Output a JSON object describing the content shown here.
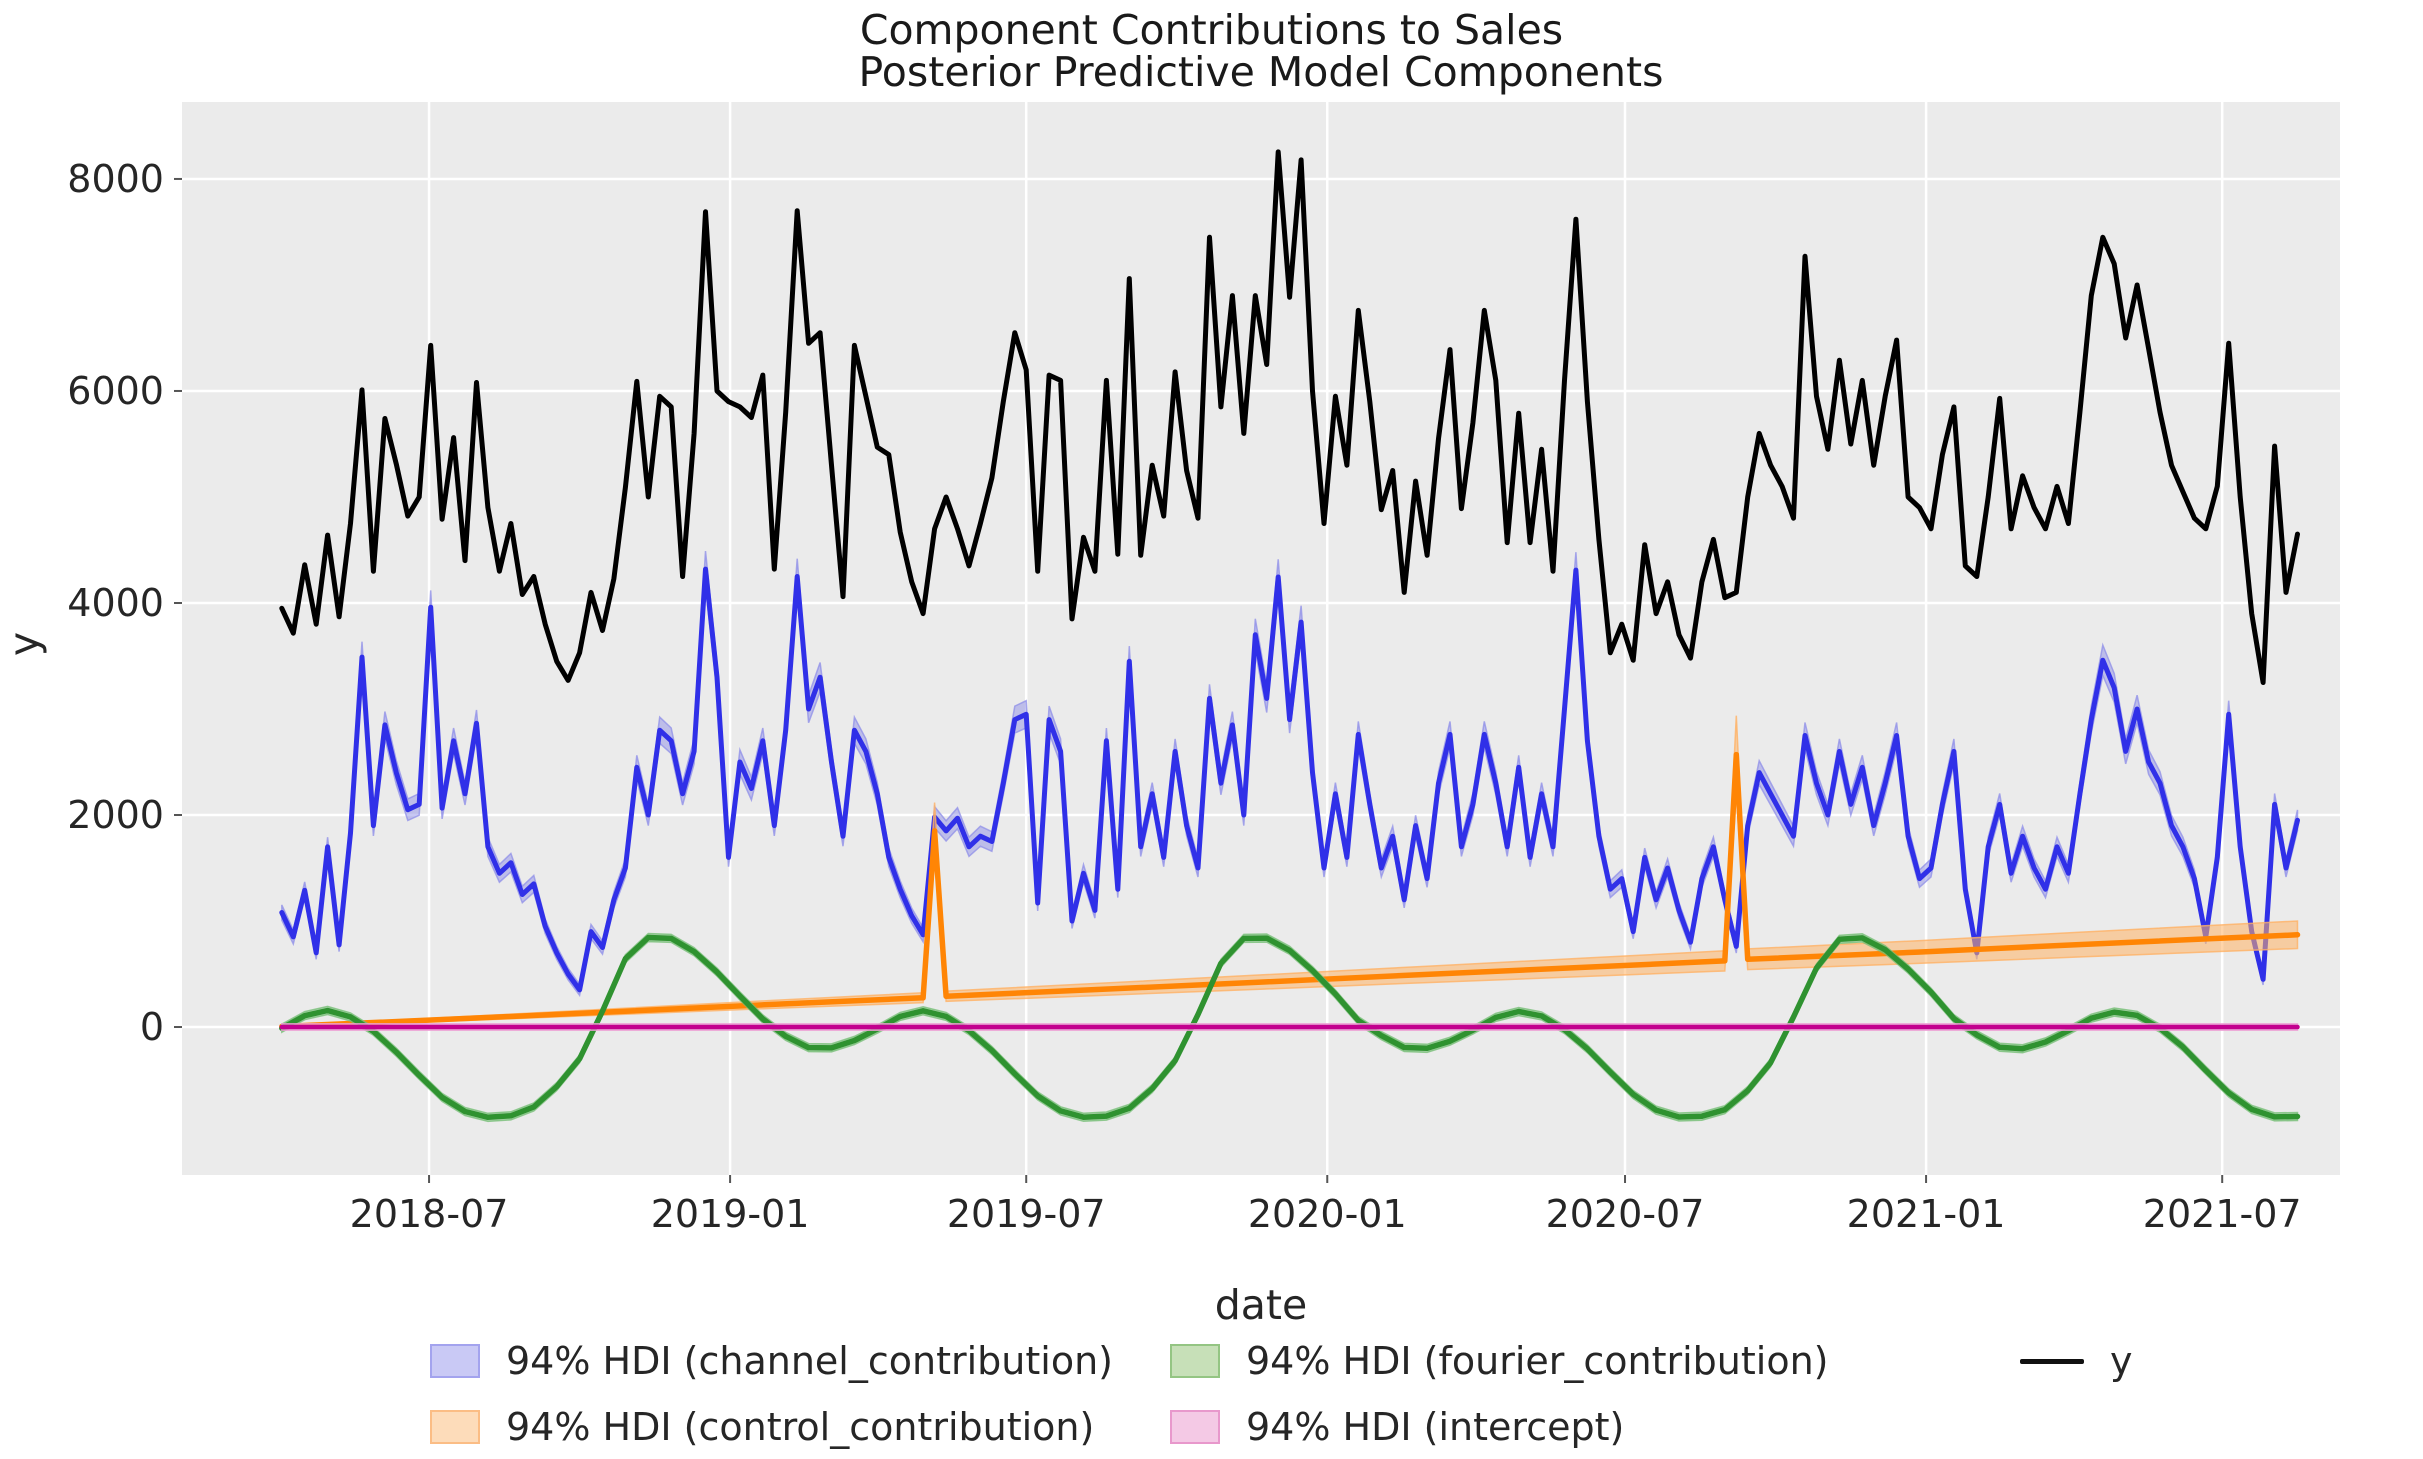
{
  "figure": {
    "title": "Component Contributions to Sales",
    "subtitle": "Posterior Predictive Model Components",
    "xlabel": "date",
    "ylabel": "y"
  },
  "colors": {
    "figure_bg": "#ffffff",
    "plot_bg": "#ebebeb",
    "grid": "#ffffff",
    "tick_text": "#262626",
    "title_text": "#1a1a1a"
  },
  "chart_data": {
    "type": "line",
    "title": "Component Contributions to Sales",
    "subtitle": "Posterior Predictive Model Components",
    "xlabel": "date",
    "ylabel": "y",
    "grid": true,
    "legend_position": "bottom",
    "x_unit": "days since 2018-04-02 (weekly observations)",
    "x_domain": [
      -61,
      1258
    ],
    "y_domain": [
      -1396,
      8726
    ],
    "x_ticks": [
      {
        "day": 90,
        "label": "2018-07"
      },
      {
        "day": 274,
        "label": "2019-01"
      },
      {
        "day": 455,
        "label": "2019-07"
      },
      {
        "day": 639,
        "label": "2020-01"
      },
      {
        "day": 821,
        "label": "2020-07"
      },
      {
        "day": 1005,
        "label": "2021-01"
      },
      {
        "day": 1186,
        "label": "2021-07"
      }
    ],
    "y_ticks": [
      0,
      2000,
      4000,
      6000,
      8000
    ],
    "series": [
      {
        "name": "94% HDI (channel_contribution)",
        "kind": "hdi-band-with-mean-line",
        "color": "#3030e8",
        "band_color": "#8f8fe8",
        "band_alpha": 0.5,
        "band_rule": {
          "base": 40,
          "factor": 0.03
        },
        "line_width": 5,
        "start_day": 0,
        "step_days": 7,
        "values": [
          1080,
          850,
          1290,
          700,
          1700,
          775,
          1830,
          3490,
          1900,
          2850,
          2400,
          2050,
          2100,
          3960,
          2065,
          2700,
          2200,
          2865,
          1700,
          1450,
          1550,
          1250,
          1350,
          950,
          700,
          500,
          350,
          900,
          750,
          1200,
          1500,
          2450,
          2000,
          2800,
          2700,
          2200,
          2600,
          4320,
          3300,
          1600,
          2500,
          2250,
          2700,
          1900,
          2800,
          4250,
          3000,
          3300,
          2500,
          1800,
          2800,
          2600,
          2200,
          1600,
          1300,
          1050,
          870,
          1980,
          1850,
          1970,
          1700,
          1800,
          1750,
          2300,
          2900,
          2950,
          1170,
          2900,
          2600,
          1000,
          1450,
          1100,
          2700,
          1300,
          3450,
          1700,
          2200,
          1600,
          2600,
          1900,
          1500,
          3100,
          2300,
          2850,
          2000,
          3700,
          3100,
          4245,
          2900,
          3820,
          2400,
          1500,
          2200,
          1600,
          2760,
          2100,
          1500,
          1800,
          1200,
          1900,
          1400,
          2300,
          2760,
          1700,
          2100,
          2760,
          2300,
          1700,
          2450,
          1600,
          2200,
          1700,
          3000,
          4310,
          2700,
          1800,
          1300,
          1400,
          900,
          1600,
          1200,
          1500,
          1100,
          800,
          1400,
          1700,
          1200,
          760,
          1900,
          2400,
          2200,
          2000,
          1800,
          2750,
          2300,
          2000,
          2600,
          2100,
          2450,
          1900,
          2300,
          2750,
          1800,
          1400,
          1500,
          2100,
          2600,
          1300,
          700,
          1700,
          2100,
          1450,
          1800,
          1500,
          1300,
          1700,
          1450,
          2200,
          2900,
          3460,
          3200,
          2600,
          3000,
          2500,
          2300,
          1900,
          1700,
          1400,
          850,
          1600,
          2950,
          1700,
          900,
          450,
          2100,
          1500,
          1950
        ]
      },
      {
        "name": "94% HDI (control_contribution)",
        "kind": "hdi-band-with-mean-line",
        "color": "#ff8505",
        "band_color": "#ffb265",
        "band_alpha": 0.55,
        "band_rule": {
          "base": 8,
          "factor": 0.14
        },
        "line_width": 5.5,
        "days": [
          0,
          100,
          200,
          300,
          392,
          399,
          406,
          500,
          600,
          700,
          800,
          875,
          882,
          889,
          896,
          1000,
          1100,
          1232
        ],
        "values": [
          5,
          72,
          142,
          213,
          276,
          1850,
          290,
          355,
          425,
          496,
          566,
          619,
          624,
          2570,
          639,
          707,
          778,
          870
        ],
        "spikes": [
          {
            "date": "2019-05-06",
            "day": 399,
            "value": 1850
          },
          {
            "date": "2020-09-07",
            "day": 889,
            "value": 2570
          }
        ]
      },
      {
        "name": "94% HDI (fourier_contribution)",
        "kind": "hdi-band-with-mean-line",
        "color": "#2f9230",
        "band_color": "#74bd74",
        "band_alpha": 0.5,
        "band_rule": {
          "base": 38,
          "factor": 0
        },
        "line_width": 5.5,
        "start_day": 0,
        "step_days": 14,
        "values": [
          -11,
          107,
          156,
          95,
          -40,
          -237,
          -456,
          -664,
          -797,
          -852,
          -838,
          -754,
          -562,
          -300,
          150,
          644,
          844,
          836,
          711,
          518,
          293,
          76,
          -88,
          -194,
          -197,
          -127,
          -20,
          100,
          153,
          100,
          -35,
          -221,
          -441,
          -650,
          -791,
          -851,
          -840,
          -767,
          -581,
          -319,
          118,
          601,
          836,
          839,
          723,
          532,
          311,
          61,
          -81,
          -193,
          -201,
          -134,
          -29,
          91,
          146,
          105,
          -24,
          -206,
          -425,
          -636,
          -784,
          -849,
          -841,
          -780,
          -600,
          -337,
          94,
          557,
          827,
          841,
          729,
          546,
          329,
          79,
          -74,
          -191,
          -205,
          -141,
          -35,
          83,
          141,
          110,
          -12,
          -188,
          -409,
          -621,
          -777,
          -848,
          -844
        ]
      },
      {
        "name": "94% HDI (intercept)",
        "kind": "hdi-band-with-mean-line",
        "color": "#c2008e",
        "band_color": "#ee9ed4",
        "band_alpha": 0.55,
        "band_rule": {
          "base": 30,
          "factor": 0
        },
        "line_width": 4.5,
        "days": [
          0,
          1232
        ],
        "values": [
          0,
          0
        ]
      },
      {
        "name": "y",
        "kind": "line",
        "color": "#000000",
        "line_width": 5,
        "start_day": 0,
        "step_days": 7,
        "values": [
          3950,
          3715,
          4360,
          3800,
          4640,
          3870,
          4750,
          6010,
          4300,
          5740,
          5310,
          4820,
          5000,
          6430,
          4790,
          5560,
          4400,
          6080,
          4900,
          4300,
          4750,
          4080,
          4250,
          3800,
          3450,
          3270,
          3530,
          4100,
          3740,
          4230,
          5090,
          6090,
          5000,
          5950,
          5850,
          4250,
          5600,
          7690,
          6000,
          5900,
          5850,
          5750,
          6150,
          4320,
          5800,
          7700,
          6450,
          6550,
          5300,
          4060,
          6430,
          5950,
          5470,
          5400,
          4670,
          4200,
          3900,
          4700,
          5000,
          4700,
          4350,
          4750,
          5180,
          5900,
          6550,
          6200,
          4300,
          6150,
          6100,
          3850,
          4620,
          4300,
          6100,
          4460,
          7060,
          4450,
          5300,
          4820,
          6180,
          5250,
          4800,
          7450,
          5850,
          6900,
          5600,
          6900,
          6250,
          8255,
          6885,
          8180,
          6000,
          4750,
          5950,
          5300,
          6760,
          5900,
          4880,
          5250,
          4100,
          5150,
          4450,
          5550,
          6390,
          4890,
          5700,
          6760,
          6100,
          4570,
          5790,
          4570,
          5450,
          4300,
          6100,
          7620,
          5900,
          4600,
          3530,
          3800,
          3460,
          4550,
          3900,
          4200,
          3700,
          3480,
          4200,
          4600,
          4050,
          4100,
          5000,
          5600,
          5300,
          5100,
          4800,
          7270,
          5950,
          5450,
          6290,
          5500,
          6100,
          5300,
          5950,
          6480,
          5000,
          4900,
          4700,
          5400,
          5850,
          4350,
          4250,
          5000,
          5930,
          4700,
          5200,
          4900,
          4700,
          5100,
          4750,
          5800,
          6900,
          7450,
          7200,
          6500,
          7000,
          6400,
          5800,
          5300,
          5050,
          4800,
          4700,
          5100,
          6450,
          5000,
          3900,
          3250,
          5480,
          4100,
          4650
        ]
      }
    ]
  },
  "legend": {
    "items": [
      {
        "label": "94% HDI (channel_contribution)",
        "type": "patch",
        "fill": "#c9c9f5",
        "border": "#a3a3ee"
      },
      {
        "label": "94% HDI (control_contribution)",
        "type": "patch",
        "fill": "#fddcba",
        "border": "#fbbd85"
      },
      {
        "label": "94% HDI (fourier_contribution)",
        "type": "patch",
        "fill": "#c7e0b8",
        "border": "#94c583"
      },
      {
        "label": "94% HDI (intercept)",
        "type": "patch",
        "fill": "#f4c9e5",
        "border": "#e898cc"
      },
      {
        "label": "y",
        "type": "line",
        "color": "#111111"
      }
    ]
  }
}
